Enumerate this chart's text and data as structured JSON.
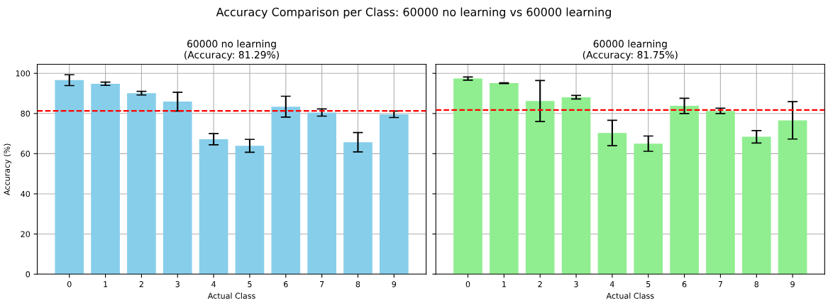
{
  "chart_data": [
    {
      "type": "bar",
      "annotations": [
        "Accuracy Comparison per Class: 60000 no learning vs 60000 learning"
      ],
      "title": "60000 no learning\n(Accuracy: 81.29%)",
      "xlabel": "Actual Class",
      "ylabel": "Accuracy (%)",
      "categories": [
        "0",
        "1",
        "2",
        "3",
        "4",
        "5",
        "6",
        "7",
        "8",
        "9"
      ],
      "values": [
        96.6,
        94.8,
        90.1,
        85.9,
        67.2,
        63.9,
        83.4,
        80.5,
        65.7,
        79.6
      ],
      "errors": [
        2.7,
        0.8,
        0.9,
        4.7,
        2.8,
        3.2,
        5.2,
        1.8,
        4.8,
        1.6
      ],
      "color": "#87ceeb",
      "ylim": [
        0,
        104.5
      ],
      "yticks": [
        0,
        20,
        40,
        60,
        80,
        100
      ],
      "grid": true,
      "ref_lines": [
        {
          "axis": "y",
          "value": 81.29,
          "color": "#ff0000",
          "line_style": "dashed"
        }
      ]
    },
    {
      "type": "bar",
      "title": "60000 learning\n(Accuracy: 81.75%)",
      "xlabel": "Actual Class",
      "categories": [
        "0",
        "1",
        "2",
        "3",
        "4",
        "5",
        "6",
        "7",
        "8",
        "9"
      ],
      "values": [
        97.4,
        95.1,
        86.2,
        88.1,
        70.3,
        65.0,
        83.8,
        81.3,
        68.4,
        76.6
      ],
      "errors": [
        0.8,
        0.2,
        10.2,
        0.9,
        6.3,
        3.8,
        3.8,
        1.3,
        3.1,
        9.3
      ],
      "color": "#90ee90",
      "ylim": [
        0,
        104.5
      ],
      "yticks": [
        0,
        20,
        40,
        60,
        80,
        100
      ],
      "grid": true,
      "tick_labels": "x",
      "ref_lines": [
        {
          "axis": "y",
          "value": 81.75,
          "color": "#ff0000",
          "line_style": "dashed"
        }
      ]
    }
  ]
}
